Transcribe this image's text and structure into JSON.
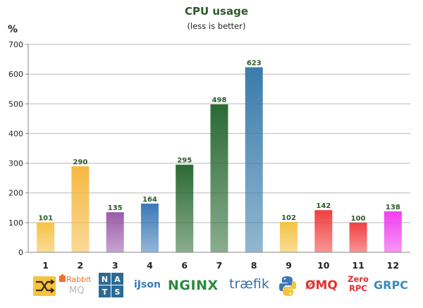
{
  "chart_data": {
    "type": "bar",
    "title": "CPU usage",
    "subtitle": "(less is better)",
    "ylabel": "%",
    "xlabel": "",
    "ylim": [
      0,
      700
    ],
    "yticks": [
      0,
      100,
      200,
      300,
      400,
      500,
      600,
      700
    ],
    "grid": true,
    "categories": [
      "1",
      "2",
      "3",
      "4",
      "6",
      "7",
      "8",
      "9",
      "10",
      "11",
      "12"
    ],
    "values": [
      101,
      290,
      135,
      164,
      295,
      498,
      623,
      102,
      142,
      100,
      138
    ],
    "bar_colors": [
      "#f5c242",
      "#f5b942",
      "#9a5ba8",
      "#3a7ab8",
      "#2b6b33",
      "#2a6a33",
      "#3a7cab",
      "#f5c242",
      "#f04040",
      "#f04040",
      "#f040f0"
    ],
    "logos": [
      {
        "icon": "crossed-arrows-logo",
        "color": "#f5c242",
        "text": ""
      },
      {
        "icon": "rabbitmq-logo",
        "color": "#f07030",
        "text": "RabbitMQ"
      },
      {
        "icon": "nats-logo",
        "color": "#2b6a95",
        "text": "NATS"
      },
      {
        "icon": "ijson-logo",
        "color": "#3a7ab8",
        "text": "iJson"
      },
      {
        "icon": "nginx-logo",
        "color": "#2b8a3e",
        "text": "NGINX"
      },
      {
        "icon": "traefik-logo",
        "color": "#3a6ea5",
        "text": "træfik"
      },
      {
        "icon": "python-logo",
        "color": "#3a7ab8",
        "text": ""
      },
      {
        "icon": "zeromq-logo",
        "color": "#e03030",
        "text": "ØMQ"
      },
      {
        "icon": "zerorpc-logo",
        "color": "#e03030",
        "text": "Zero RPC"
      },
      {
        "icon": "grpc-logo",
        "color": "#3a8ab8",
        "text": "GRPC"
      }
    ]
  }
}
